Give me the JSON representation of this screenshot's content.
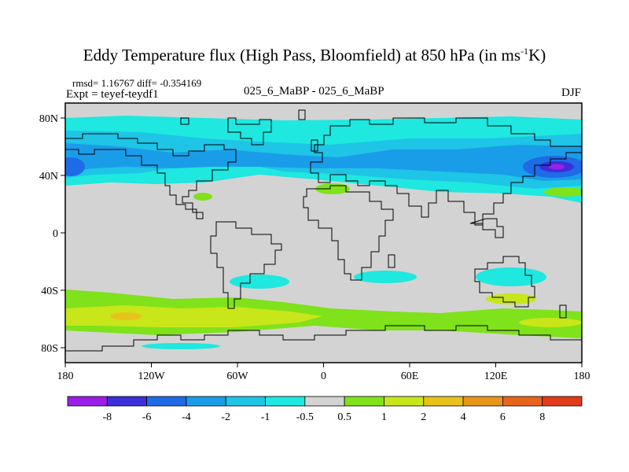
{
  "title": "Eddy Temperature flux (High Pass, Bloomfield) at 850 hPa (in ms",
  "title_sup": "-1",
  "title_tail": "K)",
  "stats": "rmsd= 1.16767 diff= -0.354169",
  "experiment": "Expt = teyef-teydf1",
  "run_label": "025_6_MaBP - 025_6_MaBP",
  "season": "DJF",
  "map": {
    "lon_ticks": [
      "180",
      "120W",
      "60W",
      "0",
      "60E",
      "120E",
      "180"
    ],
    "lat_ticks": [
      "80N",
      "40N",
      "0",
      "40S",
      "80S"
    ],
    "lat_range": [
      -90,
      90
    ],
    "lon_range": [
      -180,
      180
    ],
    "background_color": "#d3d3d3"
  },
  "colorbar": {
    "labels": [
      "-8",
      "-6",
      "-4",
      "-2",
      "-1",
      "-0.5",
      "0.5",
      "1",
      "2",
      "4",
      "6",
      "8"
    ],
    "colors": [
      "#9b1fe8",
      "#3a2fd9",
      "#1f6ae6",
      "#1a9de8",
      "#1ec5e6",
      "#1ee8df",
      "#d3d3d3",
      "#7fe21a",
      "#c8e61a",
      "#e8c21a",
      "#e8961a",
      "#e8641a",
      "#e23c1a"
    ]
  }
}
